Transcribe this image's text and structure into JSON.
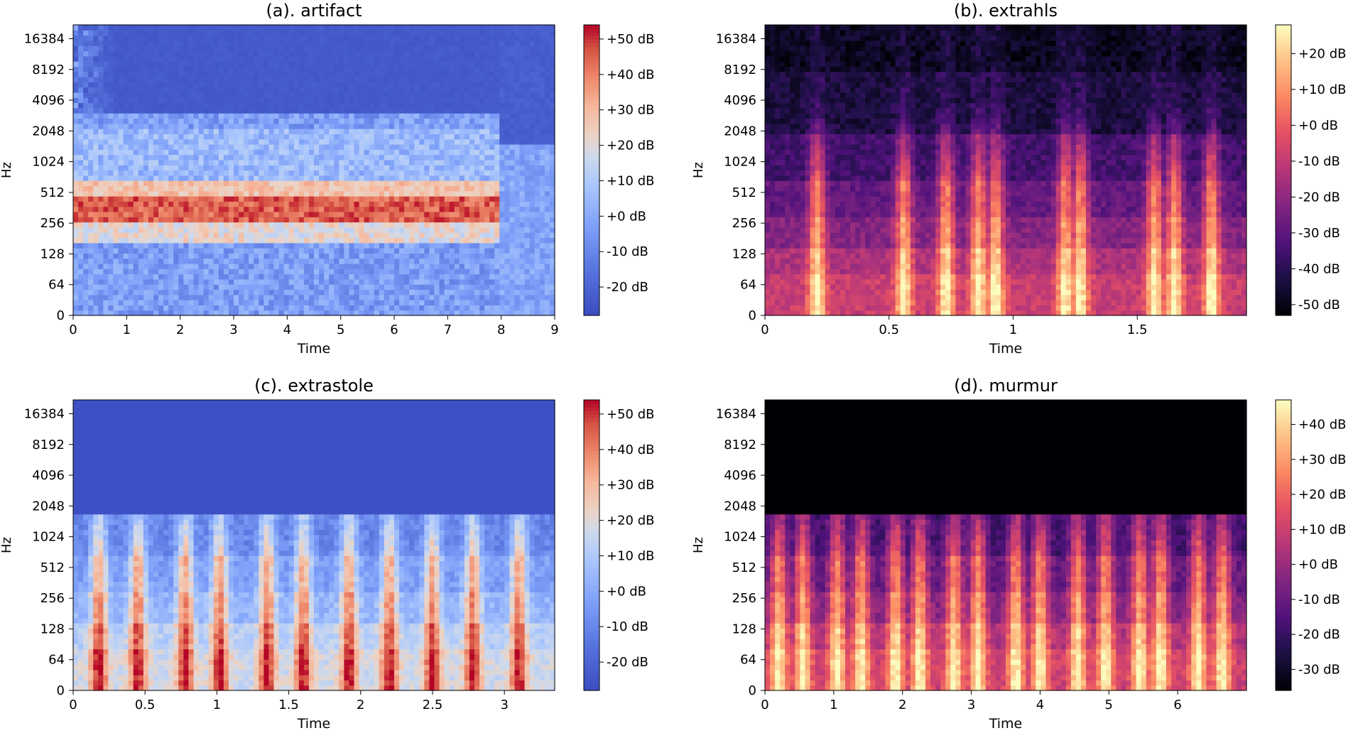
{
  "chart_data": [
    {
      "type": "heatmap",
      "title": "(a). artifact",
      "xlabel": "Time",
      "ylabel": "Hz",
      "x_ticks": [
        "0",
        "1",
        "2",
        "3",
        "4",
        "5",
        "6",
        "7",
        "8",
        "9"
      ],
      "x_tick_values": [
        0,
        1,
        2,
        3,
        4,
        5,
        6,
        7,
        8,
        9
      ],
      "xlim": [
        0,
        9
      ],
      "y_ticks": [
        "0",
        "64",
        "128",
        "256",
        "512",
        "1024",
        "2048",
        "4096",
        "8192",
        "16384"
      ],
      "colormap": "coolwarm",
      "colorbar_ticks": [
        "+50 dB",
        "+40 dB",
        "+30 dB",
        "+20 dB",
        "+10 dB",
        "+0 dB",
        "-10 dB",
        "-20 dB"
      ],
      "colorbar_values": [
        50,
        40,
        30,
        20,
        10,
        0,
        -10,
        -20
      ],
      "colorbar_range": [
        -28,
        54
      ],
      "signal": {
        "beats": [],
        "hum_band": [
          256,
          512
        ],
        "hum_end": 7.9,
        "upper_band": 2048,
        "cutoff": null
      }
    },
    {
      "type": "heatmap",
      "title": "(b). extrahls",
      "xlabel": "Time",
      "ylabel": "Hz",
      "x_ticks": [
        "0",
        "0.5",
        "1",
        "1.5"
      ],
      "x_tick_values": [
        0,
        0.5,
        1,
        1.5
      ],
      "xlim": [
        0,
        1.94
      ],
      "y_ticks": [
        "0",
        "64",
        "128",
        "256",
        "512",
        "1024",
        "2048",
        "4096",
        "8192",
        "16384"
      ],
      "colormap": "magma",
      "colorbar_ticks": [
        "+20 dB",
        "+10 dB",
        "+0 dB",
        "-10 dB",
        "-20 dB",
        "-30 dB",
        "-40 dB",
        "-50 dB"
      ],
      "colorbar_values": [
        20,
        10,
        0,
        -10,
        -20,
        -30,
        -40,
        -50
      ],
      "colorbar_range": [
        -53,
        28
      ],
      "signal": {
        "beats": [
          0.21,
          0.56,
          0.73,
          0.86,
          0.93,
          1.21,
          1.27,
          1.57,
          1.65,
          1.8
        ],
        "cutoff": null
      }
    },
    {
      "type": "heatmap",
      "title": "(c). extrastole",
      "xlabel": "Time",
      "ylabel": "Hz",
      "x_ticks": [
        "0",
        "0.5",
        "1",
        "1.5",
        "2",
        "2.5",
        "3"
      ],
      "x_tick_values": [
        0,
        0.5,
        1,
        1.5,
        2,
        2.5,
        3
      ],
      "xlim": [
        0,
        3.35
      ],
      "y_ticks": [
        "0",
        "64",
        "128",
        "256",
        "512",
        "1024",
        "2048",
        "4096",
        "8192",
        "16384"
      ],
      "colormap": "coolwarm",
      "colorbar_ticks": [
        "+50 dB",
        "+40 dB",
        "+30 dB",
        "+20 dB",
        "+10 dB",
        "+0 dB",
        "-10 dB",
        "-20 dB"
      ],
      "colorbar_values": [
        50,
        40,
        30,
        20,
        10,
        0,
        -10,
        -20
      ],
      "colorbar_range": [
        -28,
        54
      ],
      "signal": {
        "beats": [
          0.18,
          0.45,
          0.78,
          1.02,
          1.35,
          1.6,
          1.92,
          2.2,
          2.5,
          2.78,
          3.1
        ],
        "cutoff": 1800
      }
    },
    {
      "type": "heatmap",
      "title": "(d). murmur",
      "xlabel": "Time",
      "ylabel": "Hz",
      "x_ticks": [
        "0",
        "1",
        "2",
        "3",
        "4",
        "5",
        "6"
      ],
      "x_tick_values": [
        0,
        1,
        2,
        3,
        4,
        5,
        6
      ],
      "xlim": [
        0,
        7.0
      ],
      "y_ticks": [
        "0",
        "64",
        "128",
        "256",
        "512",
        "1024",
        "2048",
        "4096",
        "8192",
        "16384"
      ],
      "colormap": "magma",
      "colorbar_ticks": [
        "+40 dB",
        "+30 dB",
        "+20 dB",
        "+10 dB",
        "+0 dB",
        "-10 dB",
        "-20 dB",
        "-30 dB"
      ],
      "colorbar_values": [
        40,
        30,
        20,
        10,
        0,
        -10,
        -20,
        -30
      ],
      "colorbar_range": [
        -36,
        47
      ],
      "signal": {
        "beats": [
          0.2,
          0.55,
          1.05,
          1.4,
          1.9,
          2.25,
          2.75,
          3.1,
          3.65,
          4.0,
          4.55,
          4.95,
          5.45,
          5.75,
          6.3,
          6.65
        ],
        "cutoff": 1800
      }
    }
  ]
}
